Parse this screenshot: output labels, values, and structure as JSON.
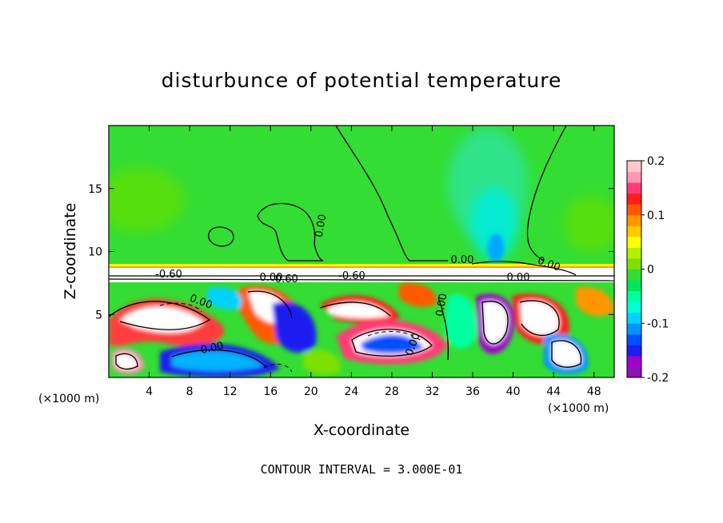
{
  "chart_data": {
    "type": "heatmap",
    "title": "disturbunce of potential temperature",
    "xlabel": "X-coordinate",
    "ylabel": "Z-coordinate",
    "x_unit": "(×1000 m)",
    "x_unit_right": "(×1000 m)",
    "xlim": [
      0,
      50
    ],
    "ylim": [
      0,
      20
    ],
    "x_ticks": [
      4,
      8,
      12,
      16,
      20,
      24,
      28,
      32,
      36,
      40,
      44,
      48
    ],
    "y_ticks": [
      5,
      10,
      15
    ],
    "colorbar": {
      "range": [
        -0.2,
        0.2
      ],
      "tick_labels": [
        "0.2",
        "0.1",
        "0",
        "-0.1",
        "-0.2"
      ],
      "tick_values": [
        0.2,
        0.1,
        0,
        -0.1,
        -0.2
      ],
      "colors": [
        "#8c14b4",
        "#a000c8",
        "#1e1ef0",
        "#0050ff",
        "#0096ff",
        "#00d2ff",
        "#00ffd2",
        "#00ffa0",
        "#00e65a",
        "#33dd33",
        "#7ae100",
        "#b4f000",
        "#ffff00",
        "#ffc800",
        "#ff9600",
        "#ff5a00",
        "#ff1e1e",
        "#ff3c78",
        "#ff96b4",
        "#ffc8c8"
      ]
    },
    "contour_labels": [
      "-0.60",
      "0.00",
      "-0.60",
      "0.00",
      "0.00",
      "0.00",
      "-0.60",
      "0.00",
      "0.00",
      "0.00",
      "0.00",
      "0.00"
    ],
    "contour_interval": "CONTOUR INTERVAL = 3.000E-01"
  }
}
